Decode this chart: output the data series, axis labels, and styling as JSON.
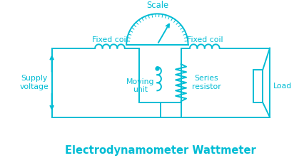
{
  "title": "Electrodynamometer Wattmeter",
  "title_color": "#00BCD4",
  "title_fontsize": 10.5,
  "diagram_color": "#00BCD4",
  "bg_color": "#FFFFFF",
  "labels": {
    "scale": "Scale",
    "fixed_coil_left": "Fixed coil",
    "fixed_coil_right": "Fixed coil",
    "supply_voltage": "Supply\nvoltage",
    "moving_unit": "Moving\nunit",
    "series_resistor": "Series\nresistor",
    "load": "Load"
  },
  "label_fontsize": 7.8,
  "label_color": "#00BCD4",
  "lw": 1.4
}
